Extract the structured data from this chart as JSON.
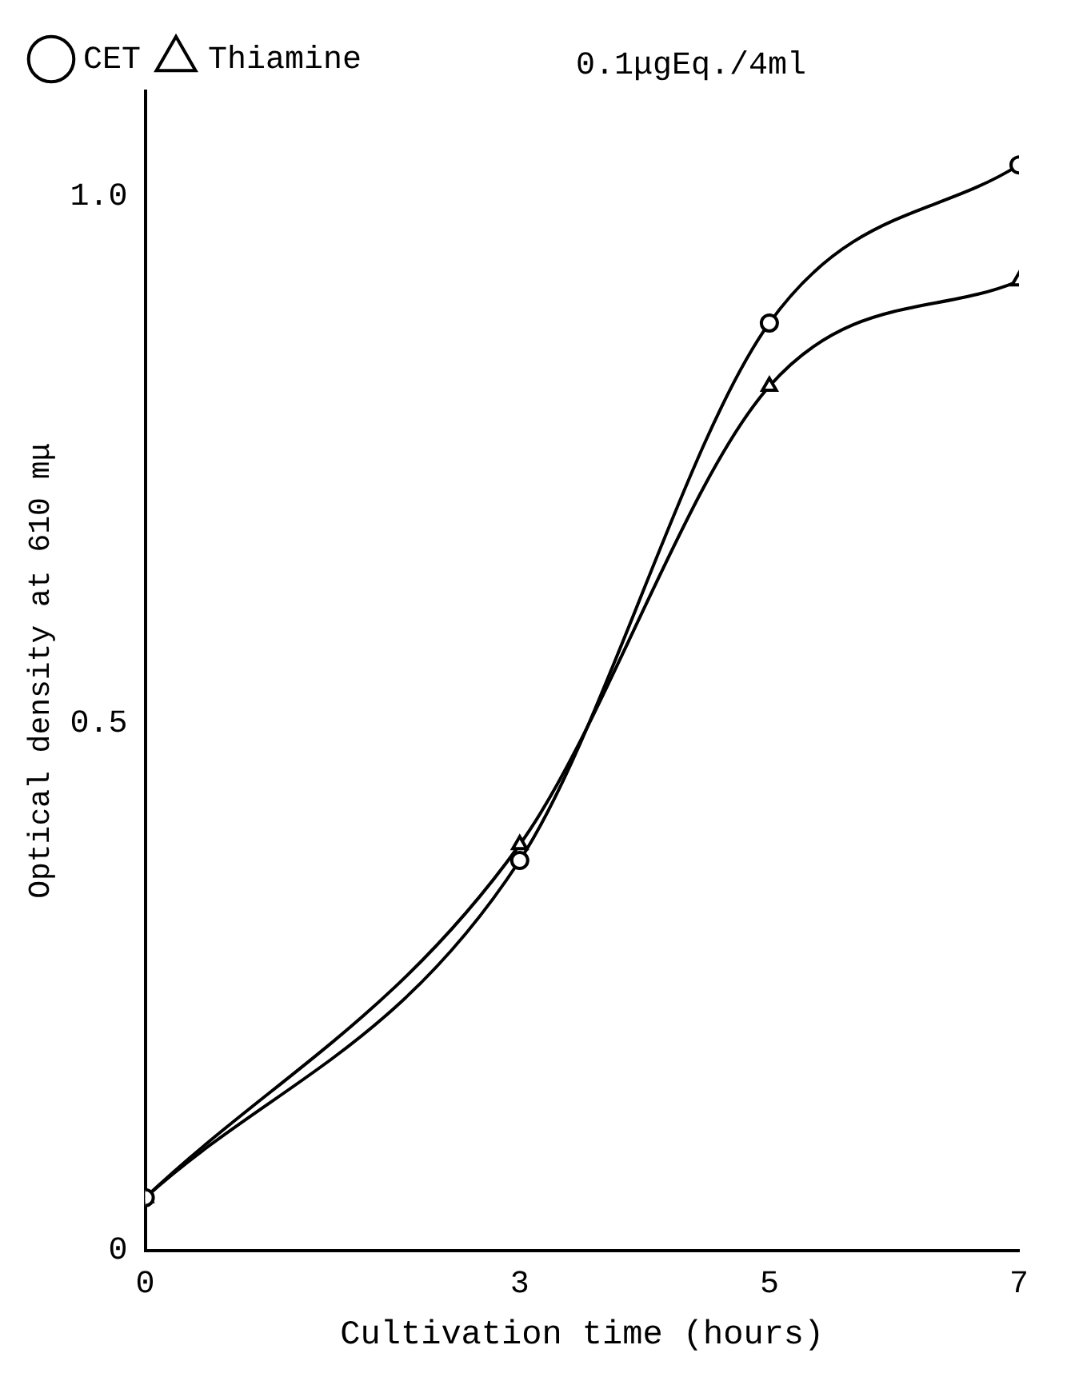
{
  "chart_data": {
    "type": "line",
    "xlabel": "Cultivation time (hours)",
    "ylabel": "Optical density at 610 mμ",
    "x": [
      0,
      3,
      5,
      7
    ],
    "series": [
      {
        "name": "CET",
        "color": "#000000",
        "marker": "circle",
        "values": [
          0.05,
          0.37,
          0.88,
          1.03
        ]
      },
      {
        "name": "Thiamine",
        "color": "#000000",
        "marker": "triangle",
        "values": [
          0.05,
          0.385,
          0.82,
          0.92
        ]
      }
    ],
    "xlim": [
      0,
      7
    ],
    "xticks": [
      0,
      3,
      5,
      7
    ],
    "ylim": [
      0,
      1.1
    ],
    "yticks": [
      0,
      {
        "value": 0.5,
        "label": "0.5"
      },
      {
        "value": 1,
        "label": "1.0"
      }
    ],
    "annotations": [
      "0.1μgEq./4ml"
    ],
    "legend": "top left",
    "grid": false
  }
}
